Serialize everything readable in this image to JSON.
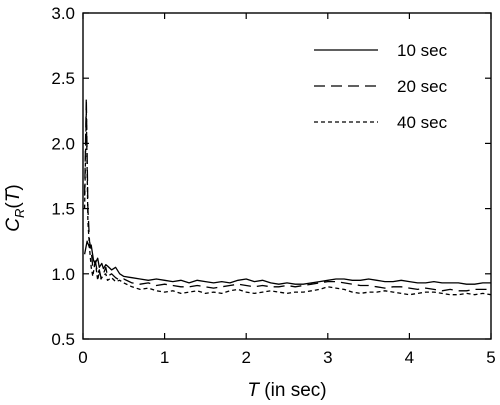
{
  "chart_data": {
    "type": "line",
    "title": "",
    "xlabel": {
      "var": "T",
      "unit": " (in sec)"
    },
    "ylabel": {
      "base": "C",
      "sub": "R",
      "open": "(",
      "var": "T",
      "close": ")"
    },
    "xlim": [
      0,
      5
    ],
    "ylim": [
      0.5,
      3.0
    ],
    "xticks": [
      "0",
      "1",
      "2",
      "3",
      "4",
      "5"
    ],
    "yticks": [
      "0.5",
      "1.0",
      "1.5",
      "2.0",
      "2.5",
      "3.0"
    ],
    "grid": false,
    "legend_position": "top-right",
    "series": [
      {
        "name": "10 sec",
        "dash": "solid",
        "x": [
          0.02,
          0.05,
          0.08,
          0.1,
          0.13,
          0.15,
          0.18,
          0.2,
          0.23,
          0.25,
          0.28,
          0.3,
          0.35,
          0.4,
          0.45,
          0.5,
          0.6,
          0.7,
          0.8,
          0.9,
          1.0,
          1.1,
          1.2,
          1.3,
          1.4,
          1.5,
          1.6,
          1.7,
          1.8,
          1.9,
          2.0,
          2.1,
          2.2,
          2.3,
          2.4,
          2.5,
          2.6,
          2.7,
          2.8,
          2.9,
          3.0,
          3.1,
          3.2,
          3.3,
          3.4,
          3.5,
          3.6,
          3.7,
          3.8,
          3.9,
          4.0,
          4.1,
          4.2,
          4.3,
          4.4,
          4.5,
          4.6,
          4.7,
          4.8,
          4.9,
          5.0
        ],
        "y": [
          1.15,
          1.25,
          1.2,
          1.22,
          1.1,
          1.08,
          1.12,
          1.05,
          1.08,
          1.04,
          1.07,
          1.06,
          1.03,
          1.05,
          1.0,
          0.98,
          0.97,
          0.96,
          0.95,
          0.96,
          0.95,
          0.94,
          0.95,
          0.93,
          0.95,
          0.94,
          0.93,
          0.94,
          0.93,
          0.95,
          0.96,
          0.94,
          0.95,
          0.93,
          0.92,
          0.93,
          0.92,
          0.92,
          0.93,
          0.94,
          0.95,
          0.96,
          0.96,
          0.95,
          0.95,
          0.96,
          0.95,
          0.94,
          0.94,
          0.95,
          0.94,
          0.93,
          0.93,
          0.94,
          0.93,
          0.93,
          0.93,
          0.92,
          0.92,
          0.93,
          0.93
        ]
      },
      {
        "name": "20 sec",
        "dash": "long",
        "x": [
          0.02,
          0.04,
          0.06,
          0.08,
          0.1,
          0.12,
          0.15,
          0.18,
          0.2,
          0.22,
          0.25,
          0.28,
          0.3,
          0.35,
          0.4,
          0.45,
          0.5,
          0.6,
          0.7,
          0.8,
          0.9,
          1.0,
          1.1,
          1.2,
          1.3,
          1.4,
          1.5,
          1.6,
          1.7,
          1.8,
          1.9,
          2.0,
          2.1,
          2.2,
          2.3,
          2.4,
          2.5,
          2.6,
          2.7,
          2.8,
          2.9,
          3.0,
          3.1,
          3.2,
          3.3,
          3.4,
          3.5,
          3.6,
          3.7,
          3.8,
          3.9,
          4.0,
          4.1,
          4.2,
          4.3,
          4.4,
          4.5,
          4.6,
          4.7,
          4.8,
          4.9,
          5.0
        ],
        "y": [
          1.6,
          2.35,
          1.5,
          1.25,
          1.18,
          1.05,
          1.1,
          1.0,
          1.03,
          0.97,
          1.0,
          1.05,
          0.98,
          1.0,
          0.97,
          0.95,
          0.96,
          0.93,
          0.92,
          0.93,
          0.91,
          0.92,
          0.91,
          0.9,
          0.9,
          0.91,
          0.9,
          0.89,
          0.9,
          0.91,
          0.92,
          0.91,
          0.9,
          0.91,
          0.9,
          0.9,
          0.91,
          0.9,
          0.91,
          0.92,
          0.93,
          0.94,
          0.94,
          0.93,
          0.92,
          0.91,
          0.91,
          0.9,
          0.89,
          0.9,
          0.9,
          0.89,
          0.88,
          0.89,
          0.88,
          0.87,
          0.88,
          0.87,
          0.87,
          0.88,
          0.88,
          0.88
        ]
      },
      {
        "name": "40 sec",
        "dash": "short",
        "x": [
          0.02,
          0.04,
          0.06,
          0.08,
          0.1,
          0.12,
          0.15,
          0.18,
          0.2,
          0.22,
          0.25,
          0.28,
          0.3,
          0.35,
          0.4,
          0.45,
          0.5,
          0.6,
          0.7,
          0.8,
          0.9,
          1.0,
          1.1,
          1.2,
          1.3,
          1.4,
          1.5,
          1.6,
          1.7,
          1.8,
          1.9,
          2.0,
          2.1,
          2.2,
          2.3,
          2.4,
          2.5,
          2.6,
          2.7,
          2.8,
          2.9,
          3.0,
          3.1,
          3.2,
          3.3,
          3.4,
          3.5,
          3.6,
          3.7,
          3.8,
          3.9,
          4.0,
          4.1,
          4.2,
          4.3,
          4.4,
          4.5,
          4.6,
          4.7,
          4.8,
          4.9,
          5.0
        ],
        "y": [
          1.5,
          2.25,
          1.4,
          1.2,
          1.05,
          0.98,
          1.1,
          0.95,
          1.02,
          0.96,
          0.99,
          1.0,
          0.95,
          0.97,
          0.94,
          0.95,
          0.93,
          0.9,
          0.88,
          0.89,
          0.87,
          0.86,
          0.87,
          0.85,
          0.86,
          0.87,
          0.85,
          0.86,
          0.85,
          0.87,
          0.88,
          0.86,
          0.85,
          0.86,
          0.87,
          0.86,
          0.85,
          0.86,
          0.86,
          0.87,
          0.88,
          0.9,
          0.89,
          0.88,
          0.86,
          0.85,
          0.86,
          0.86,
          0.87,
          0.86,
          0.85,
          0.84,
          0.85,
          0.86,
          0.86,
          0.85,
          0.84,
          0.84,
          0.85,
          0.84,
          0.85,
          0.84
        ]
      }
    ]
  }
}
